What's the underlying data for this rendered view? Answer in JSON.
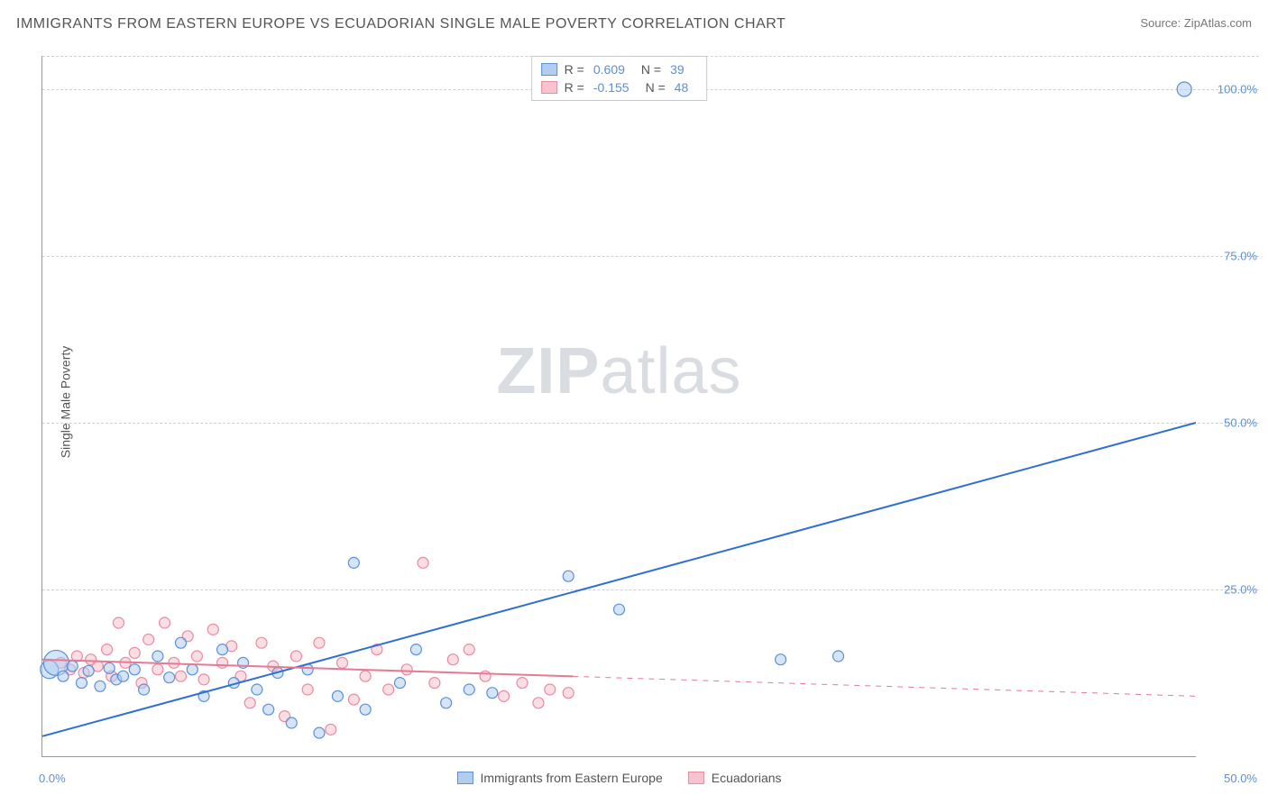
{
  "title": "IMMIGRANTS FROM EASTERN EUROPE VS ECUADORIAN SINGLE MALE POVERTY CORRELATION CHART",
  "source": "Source: ZipAtlas.com",
  "ylabel": "Single Male Poverty",
  "watermark_zip": "ZIP",
  "watermark_atlas": "atlas",
  "chart": {
    "type": "scatter",
    "xlim": [
      0,
      50
    ],
    "ylim": [
      0,
      105
    ],
    "ytick_values": [
      25,
      50,
      75,
      100
    ],
    "ytick_labels": [
      "25.0%",
      "50.0%",
      "75.0%",
      "100.0%"
    ],
    "xtick_min_label": "0.0%",
    "xtick_max_label": "50.0%",
    "background_color": "#ffffff",
    "grid_color": "#d0d0d0",
    "series": [
      {
        "key": "blue",
        "name": "Immigrants from Eastern Europe",
        "fill": "#b2cdf0",
        "stroke": "#5b8fd6",
        "fill_opacity": 0.55,
        "r_value": "0.609",
        "n_value": "39",
        "trend": {
          "x1": 0,
          "y1": 3,
          "x2": 50,
          "y2": 50,
          "solid_until_x": 50,
          "color": "#2f6fd0",
          "width": 2
        },
        "points": [
          {
            "x": 0.3,
            "y": 13,
            "r": 10
          },
          {
            "x": 0.6,
            "y": 14,
            "r": 14
          },
          {
            "x": 0.9,
            "y": 12,
            "r": 6
          },
          {
            "x": 1.3,
            "y": 13.5,
            "r": 6
          },
          {
            "x": 1.7,
            "y": 11,
            "r": 6
          },
          {
            "x": 2.0,
            "y": 12.8,
            "r": 6
          },
          {
            "x": 2.5,
            "y": 10.5,
            "r": 6
          },
          {
            "x": 2.9,
            "y": 13.2,
            "r": 6
          },
          {
            "x": 3.2,
            "y": 11.5,
            "r": 6
          },
          {
            "x": 3.5,
            "y": 12,
            "r": 6
          },
          {
            "x": 4.0,
            "y": 13,
            "r": 6
          },
          {
            "x": 4.4,
            "y": 10,
            "r": 6
          },
          {
            "x": 5.0,
            "y": 15,
            "r": 6
          },
          {
            "x": 5.5,
            "y": 11.8,
            "r": 6
          },
          {
            "x": 6.0,
            "y": 17,
            "r": 6
          },
          {
            "x": 6.5,
            "y": 13,
            "r": 6
          },
          {
            "x": 7.0,
            "y": 9,
            "r": 6
          },
          {
            "x": 7.8,
            "y": 16,
            "r": 6
          },
          {
            "x": 8.3,
            "y": 11,
            "r": 6
          },
          {
            "x": 8.7,
            "y": 14,
            "r": 6
          },
          {
            "x": 9.3,
            "y": 10,
            "r": 6
          },
          {
            "x": 9.8,
            "y": 7,
            "r": 6
          },
          {
            "x": 10.2,
            "y": 12.5,
            "r": 6
          },
          {
            "x": 10.8,
            "y": 5,
            "r": 6
          },
          {
            "x": 11.5,
            "y": 13,
            "r": 6
          },
          {
            "x": 12.0,
            "y": 3.5,
            "r": 6
          },
          {
            "x": 12.8,
            "y": 9,
            "r": 6
          },
          {
            "x": 13.5,
            "y": 29,
            "r": 6
          },
          {
            "x": 14.0,
            "y": 7,
            "r": 6
          },
          {
            "x": 15.5,
            "y": 11,
            "r": 6
          },
          {
            "x": 16.2,
            "y": 16,
            "r": 6
          },
          {
            "x": 17.5,
            "y": 8,
            "r": 6
          },
          {
            "x": 18.5,
            "y": 10,
            "r": 6
          },
          {
            "x": 19.5,
            "y": 9.5,
            "r": 6
          },
          {
            "x": 22.8,
            "y": 27,
            "r": 6
          },
          {
            "x": 25.0,
            "y": 22,
            "r": 6
          },
          {
            "x": 32.0,
            "y": 14.5,
            "r": 6
          },
          {
            "x": 34.5,
            "y": 15,
            "r": 6
          },
          {
            "x": 49.5,
            "y": 100,
            "r": 8
          }
        ]
      },
      {
        "key": "pink",
        "name": "Ecuadorians",
        "fill": "#f6c3ce",
        "stroke": "#e98aa0",
        "fill_opacity": 0.55,
        "r_value": "-0.155",
        "n_value": "48",
        "trend": {
          "x1": 0,
          "y1": 14.5,
          "x2": 50,
          "y2": 9,
          "solid_until_x": 23,
          "color": "#e47a93",
          "width": 2
        },
        "points": [
          {
            "x": 0.8,
            "y": 14,
            "r": 6
          },
          {
            "x": 1.2,
            "y": 13,
            "r": 6
          },
          {
            "x": 1.5,
            "y": 15,
            "r": 6
          },
          {
            "x": 1.8,
            "y": 12.5,
            "r": 6
          },
          {
            "x": 2.1,
            "y": 14.5,
            "r": 6
          },
          {
            "x": 2.4,
            "y": 13.5,
            "r": 6
          },
          {
            "x": 2.8,
            "y": 16,
            "r": 6
          },
          {
            "x": 3.0,
            "y": 12,
            "r": 6
          },
          {
            "x": 3.3,
            "y": 20,
            "r": 6
          },
          {
            "x": 3.6,
            "y": 14,
            "r": 6
          },
          {
            "x": 4.0,
            "y": 15.5,
            "r": 6
          },
          {
            "x": 4.3,
            "y": 11,
            "r": 6
          },
          {
            "x": 4.6,
            "y": 17.5,
            "r": 6
          },
          {
            "x": 5.0,
            "y": 13,
            "r": 6
          },
          {
            "x": 5.3,
            "y": 20,
            "r": 6
          },
          {
            "x": 5.7,
            "y": 14,
            "r": 6
          },
          {
            "x": 6.0,
            "y": 12,
            "r": 6
          },
          {
            "x": 6.3,
            "y": 18,
            "r": 6
          },
          {
            "x": 6.7,
            "y": 15,
            "r": 6
          },
          {
            "x": 7.0,
            "y": 11.5,
            "r": 6
          },
          {
            "x": 7.4,
            "y": 19,
            "r": 6
          },
          {
            "x": 7.8,
            "y": 14,
            "r": 6
          },
          {
            "x": 8.2,
            "y": 16.5,
            "r": 6
          },
          {
            "x": 8.6,
            "y": 12,
            "r": 6
          },
          {
            "x": 9.0,
            "y": 8,
            "r": 6
          },
          {
            "x": 9.5,
            "y": 17,
            "r": 6
          },
          {
            "x": 10.0,
            "y": 13.5,
            "r": 6
          },
          {
            "x": 10.5,
            "y": 6,
            "r": 6
          },
          {
            "x": 11.0,
            "y": 15,
            "r": 6
          },
          {
            "x": 11.5,
            "y": 10,
            "r": 6
          },
          {
            "x": 12.0,
            "y": 17,
            "r": 6
          },
          {
            "x": 12.5,
            "y": 4,
            "r": 6
          },
          {
            "x": 13.0,
            "y": 14,
            "r": 6
          },
          {
            "x": 13.5,
            "y": 8.5,
            "r": 6
          },
          {
            "x": 14.0,
            "y": 12,
            "r": 6
          },
          {
            "x": 14.5,
            "y": 16,
            "r": 6
          },
          {
            "x": 15.0,
            "y": 10,
            "r": 6
          },
          {
            "x": 15.8,
            "y": 13,
            "r": 6
          },
          {
            "x": 16.5,
            "y": 29,
            "r": 6
          },
          {
            "x": 17.0,
            "y": 11,
            "r": 6
          },
          {
            "x": 17.8,
            "y": 14.5,
            "r": 6
          },
          {
            "x": 18.5,
            "y": 16,
            "r": 6
          },
          {
            "x": 19.2,
            "y": 12,
            "r": 6
          },
          {
            "x": 20.0,
            "y": 9,
            "r": 6
          },
          {
            "x": 20.8,
            "y": 11,
            "r": 6
          },
          {
            "x": 21.5,
            "y": 8,
            "r": 6
          },
          {
            "x": 22.0,
            "y": 10,
            "r": 6
          },
          {
            "x": 22.8,
            "y": 9.5,
            "r": 6
          }
        ]
      }
    ]
  },
  "legend_top": {
    "r_label": "R =",
    "n_label": "N ="
  },
  "legend_bottom": {
    "items": [
      {
        "label": "Immigrants from Eastern Europe",
        "fill": "#b2cdf0",
        "stroke": "#5b8fd6"
      },
      {
        "label": "Ecuadorians",
        "fill": "#f6c3ce",
        "stroke": "#e98aa0"
      }
    ]
  }
}
